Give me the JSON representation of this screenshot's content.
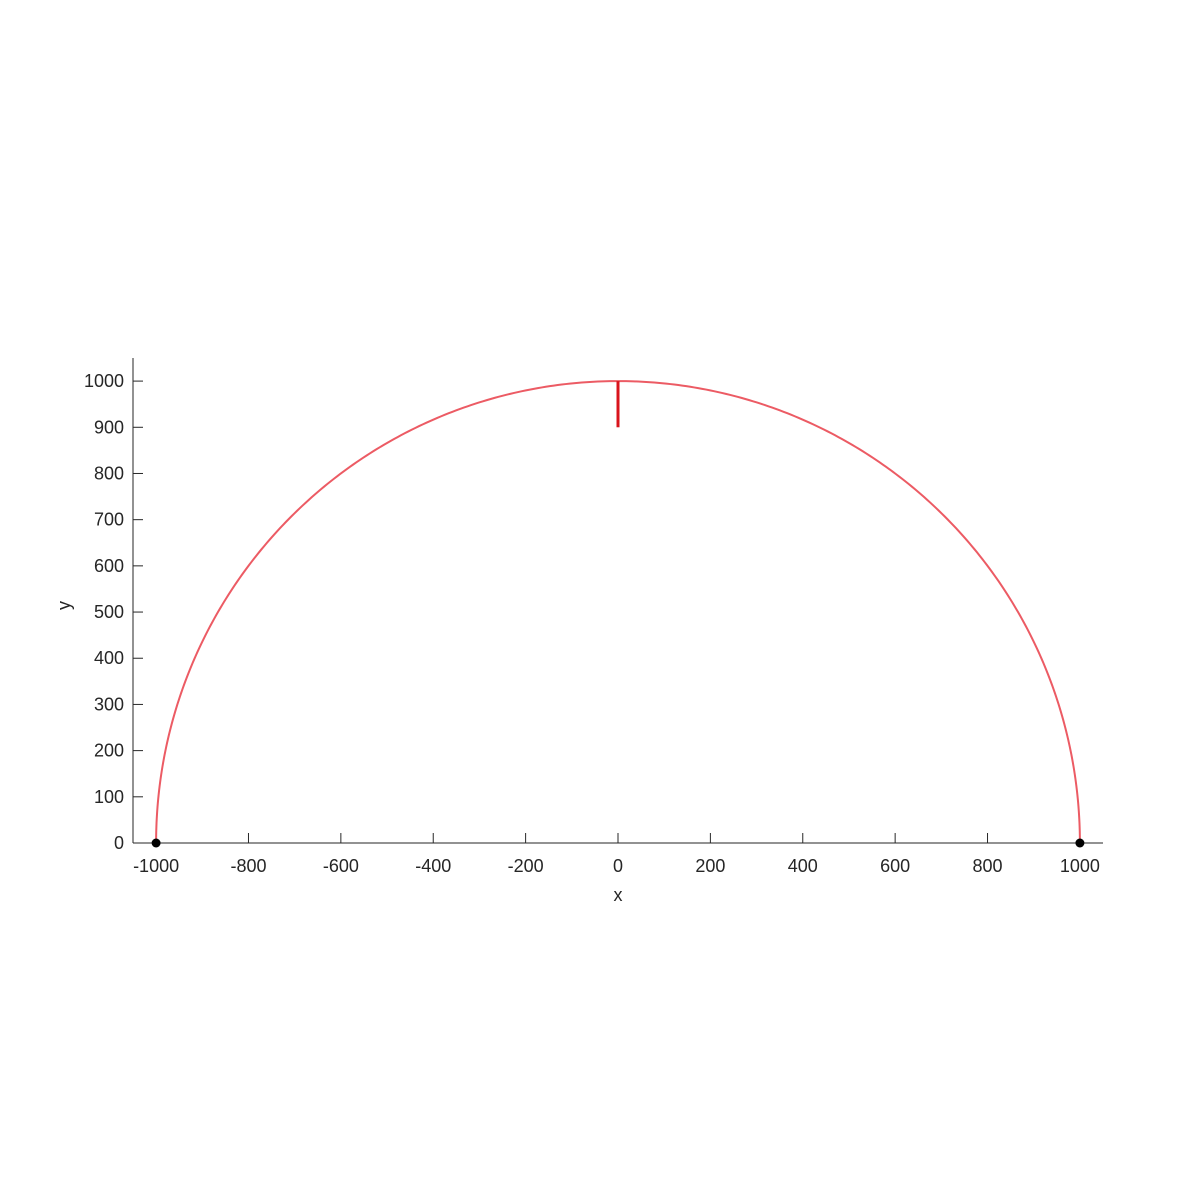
{
  "chart_data": {
    "type": "line",
    "title": "",
    "xlabel": "x",
    "ylabel": "y",
    "xlim": [
      -1050,
      1050
    ],
    "ylim": [
      0,
      1050
    ],
    "xticks": [
      -1000,
      -800,
      -600,
      -400,
      -200,
      0,
      200,
      400,
      600,
      800,
      1000
    ],
    "yticks": [
      0,
      100,
      200,
      300,
      400,
      500,
      600,
      700,
      800,
      900,
      1000
    ],
    "xtick_labels": [
      "-1000",
      "-800",
      "-600",
      "-400",
      "-200",
      "0",
      "200",
      "400",
      "600",
      "800",
      "1000"
    ],
    "ytick_labels": [
      "0",
      "100",
      "200",
      "300",
      "400",
      "500",
      "600",
      "700",
      "800",
      "900",
      "1000"
    ],
    "grid": false,
    "series": [
      {
        "name": "semicircle",
        "kind": "arc",
        "center": [
          0,
          0
        ],
        "radius": 1000,
        "theta_range_deg": [
          0,
          180
        ],
        "color": "#ec5b64"
      },
      {
        "name": "vertical-marker",
        "kind": "segment",
        "x": [
          0,
          0
        ],
        "y": [
          900,
          1000
        ],
        "color": "#d9141c"
      },
      {
        "name": "endpoints",
        "kind": "scatter",
        "x": [
          -1000,
          1000
        ],
        "y": [
          0,
          0
        ],
        "color": "#000000"
      }
    ]
  }
}
